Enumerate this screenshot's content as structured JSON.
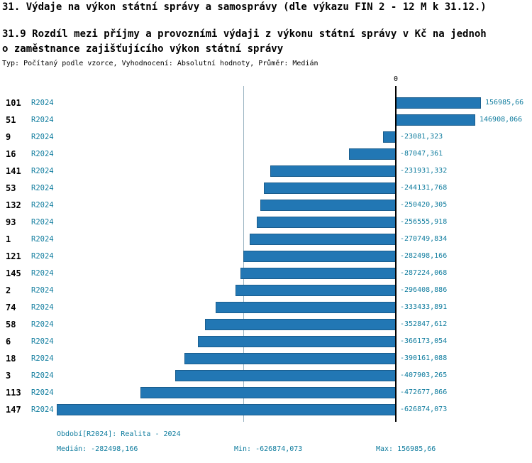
{
  "title": "31. Výdaje na výkon státní správy a samosprávy (dle výkazu FIN 2 - 12 M k 31.12.)",
  "subtitle": "31.9 Rozdíl mezi příjmy a provozními výdaji z výkonu státní správy v Kč na jednoh\no zaměstnance zajišťujícího výkon státní správy",
  "meta": "Typ: Počítaný podle vzorce, Vyhodnocení: Absolutní hodnoty, Průměr: Medián",
  "axis": {
    "zero_label": "0"
  },
  "colors": {
    "bar": "#2277b4",
    "bar_border": "#1a5d8d",
    "accent_text": "#0f7c9e",
    "median_line": "#9ab4c2",
    "axis_line": "#000000"
  },
  "chart_data": {
    "type": "bar",
    "orientation": "horizontal",
    "title": "31.9 Rozdíl mezi příjmy a provozními výdaji z výkonu státní správy v Kč na jednoho zaměstnance zajišťujícího výkon státní správy",
    "series_label": "R2024",
    "categories": [
      "101",
      "51",
      "9",
      "16",
      "141",
      "53",
      "132",
      "93",
      "1",
      "121",
      "145",
      "2",
      "74",
      "58",
      "6",
      "18",
      "3",
      "113",
      "147"
    ],
    "values": [
      156985.66,
      146908.066,
      -23081.323,
      -87047.361,
      -231931.332,
      -244131.768,
      -250420.305,
      -256555.918,
      -270749.834,
      -282498.166,
      -287224.068,
      -296408.886,
      -333433.891,
      -352847.612,
      -366173.054,
      -390161.088,
      -407903.265,
      -472677.866,
      -626874.073
    ],
    "value_labels": [
      "156985,66",
      "146908,066",
      "-23081,323",
      "-87047,361",
      "-231931,332",
      "-244131,768",
      "-250420,305",
      "-256555,918",
      "-270749,834",
      "-282498,166",
      "-287224,068",
      "-296408,886",
      "-333433,891",
      "-352847,612",
      "-366173,054",
      "-390161,088",
      "-407903,265",
      "-472677,866",
      "-626874,073"
    ],
    "median": -282498.166,
    "xlim": [
      -626874.073,
      156985.66
    ],
    "grid": false,
    "legend_position": "none"
  },
  "footer": {
    "period": "Období[R2024]: Realita - 2024",
    "median": "Medián: -282498,166",
    "min": "Min: -626874,073",
    "max": "Max: 156985,66"
  }
}
